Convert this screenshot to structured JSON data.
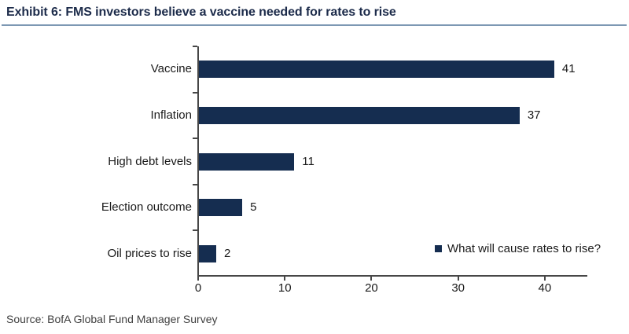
{
  "header": {
    "title": "Exhibit 6: FMS investors believe a vaccine needed for rates to rise"
  },
  "chart_data": {
    "type": "bar",
    "orientation": "horizontal",
    "title": "Exhibit 6: FMS investors believe a vaccine needed for rates to rise",
    "categories": [
      "Vaccine",
      "Inflation",
      "High debt levels",
      "Election outcome",
      "Oil prices to rise"
    ],
    "values": [
      41,
      37,
      11,
      5,
      2
    ],
    "value_labels_shown": true,
    "xlabel": "",
    "ylabel": "",
    "xlim": [
      0,
      45
    ],
    "x_ticks": [
      0,
      10,
      20,
      30,
      40
    ],
    "grid": false,
    "legend": {
      "label": "What will cause rates to rise?",
      "position": "bottom-right",
      "marker": "square"
    },
    "colors": {
      "bar": "#152D50",
      "axis": "#474747",
      "tick_text": "#1a1a1a",
      "title_text": "#1C2B4A",
      "title_rule": "#7D98B3"
    }
  },
  "source": {
    "text": "Source: BofA Global Fund Manager Survey"
  }
}
